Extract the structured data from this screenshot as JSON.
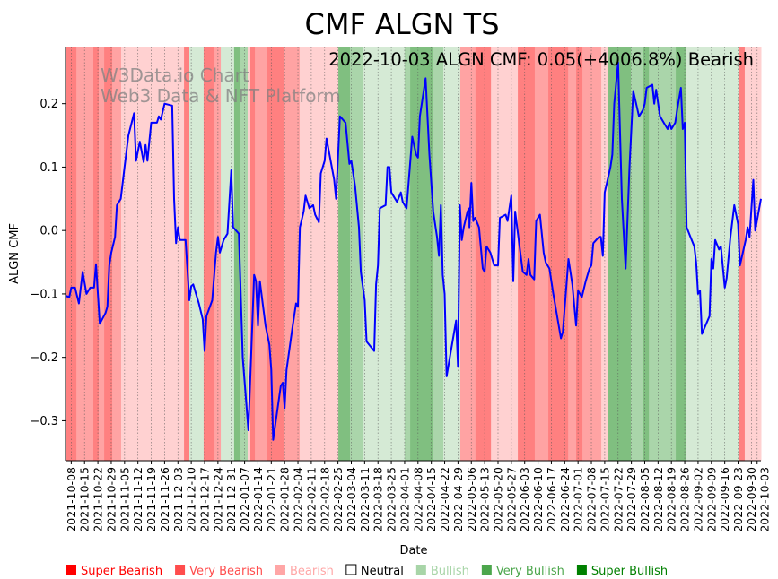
{
  "chart_data": {
    "type": "line",
    "title": "CMF ALGN TS",
    "subtitle": "2022-10-03 ALGN CMF: 0.05(+4006.8%) Bearish",
    "watermark": [
      "W3Data.io Chart",
      "Web3 Data & NFT Platform"
    ],
    "xlabel": "Date",
    "ylabel": "ALGN CMF",
    "x_origin_date": "2021-10-05",
    "x_unit": "days since origin",
    "xlim": [
      0,
      365
    ],
    "ylim": [
      -0.363,
      0.29
    ],
    "yticks": [
      0.2,
      0.1,
      0.0,
      -0.1,
      -0.2,
      -0.3
    ],
    "ytick_labels": [
      "0.2",
      "0.1",
      "0.0",
      "−0.1",
      "−0.2",
      "−0.3"
    ],
    "xtick_days": [
      3,
      10,
      17,
      24,
      31,
      38,
      45,
      52,
      59,
      66,
      73,
      80,
      87,
      94,
      101,
      108,
      115,
      122,
      129,
      136,
      143,
      150,
      157,
      164,
      171,
      178,
      185,
      192,
      199,
      206,
      213,
      220,
      227,
      234,
      241,
      248,
      255,
      262,
      269,
      276,
      283,
      290,
      297,
      304,
      311,
      318,
      325,
      332,
      339,
      346,
      353,
      360,
      363
    ],
    "xtick_labels": [
      "2021-10-08",
      "2021-10-15",
      "2021-10-22",
      "2021-10-29",
      "2021-11-05",
      "2021-11-12",
      "2021-11-19",
      "2021-11-26",
      "2021-12-03",
      "2021-12-10",
      "2021-12-17",
      "2021-12-24",
      "2021-12-31",
      "2022-01-07",
      "2022-01-14",
      "2022-01-21",
      "2022-01-28",
      "2022-02-04",
      "2022-02-11",
      "2022-02-18",
      "2022-02-25",
      "2022-03-04",
      "2022-03-11",
      "2022-03-18",
      "2022-03-25",
      "2022-04-01",
      "2022-04-08",
      "2022-04-15",
      "2022-04-22",
      "2022-04-29",
      "2022-05-06",
      "2022-05-13",
      "2022-05-20",
      "2022-05-27",
      "2022-06-03",
      "2022-06-10",
      "2022-06-17",
      "2022-06-24",
      "2022-07-01",
      "2022-07-08",
      "2022-07-15",
      "2022-07-22",
      "2022-07-29",
      "2022-08-05",
      "2022-08-12",
      "2022-08-19",
      "2022-08-26",
      "2022-09-02",
      "2022-09-09",
      "2022-09-16",
      "2022-09-23",
      "2022-09-30",
      "2022-10-03"
    ],
    "grid": "x-dotted",
    "series": [
      {
        "name": "ALGN CMF",
        "color": "#0000ff",
        "points": [
          [
            0,
            -0.103
          ],
          [
            2,
            -0.105
          ],
          [
            3,
            -0.09
          ],
          [
            5,
            -0.09
          ],
          [
            7,
            -0.115
          ],
          [
            9,
            -0.065
          ],
          [
            11,
            -0.1
          ],
          [
            13,
            -0.09
          ],
          [
            15,
            -0.09
          ],
          [
            16,
            -0.053
          ],
          [
            18,
            -0.147
          ],
          [
            21,
            -0.13
          ],
          [
            22,
            -0.12
          ],
          [
            23,
            -0.055
          ],
          [
            24,
            -0.035
          ],
          [
            26,
            -0.01
          ],
          [
            27,
            0.04
          ],
          [
            29,
            0.05
          ],
          [
            31,
            0.1
          ],
          [
            33,
            0.15
          ],
          [
            36,
            0.185
          ],
          [
            37,
            0.11
          ],
          [
            39,
            0.14
          ],
          [
            41,
            0.108
          ],
          [
            42,
            0.135
          ],
          [
            43,
            0.11
          ],
          [
            45,
            0.17
          ],
          [
            48,
            0.17
          ],
          [
            49,
            0.18
          ],
          [
            50,
            0.175
          ],
          [
            52,
            0.2
          ],
          [
            56,
            0.197
          ],
          [
            57,
            0.05
          ],
          [
            58,
            -0.02
          ],
          [
            59,
            0.005
          ],
          [
            60,
            -0.015
          ],
          [
            63,
            -0.015
          ],
          [
            65,
            -0.11
          ],
          [
            66,
            -0.088
          ],
          [
            67,
            -0.085
          ],
          [
            70,
            -0.115
          ],
          [
            72,
            -0.14
          ],
          [
            73,
            -0.19
          ],
          [
            74,
            -0.135
          ],
          [
            77,
            -0.11
          ],
          [
            79,
            -0.035
          ],
          [
            80,
            -0.01
          ],
          [
            81,
            -0.035
          ],
          [
            83,
            -0.015
          ],
          [
            85,
            -0.005
          ],
          [
            87,
            0.095
          ],
          [
            88,
            0.005
          ],
          [
            91,
            -0.005
          ],
          [
            93,
            -0.2
          ],
          [
            96,
            -0.315
          ],
          [
            99,
            -0.07
          ],
          [
            100,
            -0.08
          ],
          [
            101,
            -0.15
          ],
          [
            102,
            -0.08
          ],
          [
            105,
            -0.15
          ],
          [
            107,
            -0.18
          ],
          [
            108,
            -0.22
          ],
          [
            109,
            -0.33
          ],
          [
            113,
            -0.245
          ],
          [
            114,
            -0.24
          ],
          [
            115,
            -0.28
          ],
          [
            116,
            -0.22
          ],
          [
            119,
            -0.155
          ],
          [
            121,
            -0.115
          ],
          [
            122,
            -0.12
          ],
          [
            123,
            0.005
          ],
          [
            125,
            0.03
          ],
          [
            126,
            0.055
          ],
          [
            128,
            0.035
          ],
          [
            130,
            0.04
          ],
          [
            131,
            0.025
          ],
          [
            133,
            0.013
          ],
          [
            134,
            0.09
          ],
          [
            136,
            0.11
          ],
          [
            137,
            0.145
          ],
          [
            141,
            0.08
          ],
          [
            142,
            0.05
          ],
          [
            144,
            0.18
          ],
          [
            147,
            0.17
          ],
          [
            149,
            0.105
          ],
          [
            150,
            0.11
          ],
          [
            152,
            0.07
          ],
          [
            154,
            0.005
          ],
          [
            155,
            -0.065
          ],
          [
            157,
            -0.11
          ],
          [
            158,
            -0.175
          ],
          [
            162,
            -0.19
          ],
          [
            163,
            -0.085
          ],
          [
            164,
            -0.055
          ],
          [
            165,
            0.035
          ],
          [
            168,
            0.04
          ],
          [
            169,
            0.1
          ],
          [
            170,
            0.1
          ],
          [
            171,
            0.06
          ],
          [
            174,
            0.045
          ],
          [
            176,
            0.06
          ],
          [
            177,
            0.045
          ],
          [
            179,
            0.035
          ],
          [
            182,
            0.148
          ],
          [
            184,
            0.12
          ],
          [
            185,
            0.115
          ],
          [
            186,
            0.18
          ],
          [
            189,
            0.24
          ],
          [
            191,
            0.12
          ],
          [
            193,
            0.03
          ],
          [
            195,
            -0.01
          ],
          [
            196,
            -0.04
          ],
          [
            197,
            0.04
          ],
          [
            198,
            -0.07
          ],
          [
            199,
            -0.1
          ],
          [
            200,
            -0.23
          ],
          [
            205,
            -0.142
          ],
          [
            206,
            -0.215
          ],
          [
            207,
            0.04
          ],
          [
            208,
            -0.015
          ],
          [
            209,
            0.005
          ],
          [
            211,
            0.03
          ],
          [
            212,
            0.035
          ],
          [
            212,
            0.005
          ],
          [
            213,
            0.075
          ],
          [
            214,
            0.015
          ],
          [
            215,
            0.02
          ],
          [
            217,
            0.005
          ],
          [
            219,
            -0.06
          ],
          [
            220,
            -0.065
          ],
          [
            221,
            -0.025
          ],
          [
            223,
            -0.035
          ],
          [
            225,
            -0.055
          ],
          [
            227,
            -0.055
          ],
          [
            228,
            0.02
          ],
          [
            231,
            0.025
          ],
          [
            232,
            0.015
          ],
          [
            234,
            0.055
          ],
          [
            235,
            -0.08
          ],
          [
            236,
            0.03
          ],
          [
            240,
            -0.065
          ],
          [
            242,
            -0.07
          ],
          [
            243,
            -0.045
          ],
          [
            244,
            -0.07
          ],
          [
            246,
            -0.077
          ],
          [
            247,
            0.015
          ],
          [
            249,
            0.025
          ],
          [
            251,
            -0.035
          ],
          [
            252,
            -0.05
          ],
          [
            254,
            -0.06
          ],
          [
            256,
            -0.1
          ],
          [
            260,
            -0.17
          ],
          [
            261,
            -0.16
          ],
          [
            264,
            -0.045
          ],
          [
            266,
            -0.085
          ],
          [
            268,
            -0.15
          ],
          [
            269,
            -0.095
          ],
          [
            271,
            -0.105
          ],
          [
            273,
            -0.08
          ],
          [
            275,
            -0.06
          ],
          [
            276,
            -0.055
          ],
          [
            277,
            -0.02
          ],
          [
            280,
            -0.01
          ],
          [
            281,
            -0.01
          ],
          [
            282,
            -0.04
          ],
          [
            283,
            0.06
          ],
          [
            286,
            0.1
          ],
          [
            287,
            0.12
          ],
          [
            288,
            0.2
          ],
          [
            290,
            0.265
          ],
          [
            292,
            0.05
          ],
          [
            294,
            -0.06
          ],
          [
            296,
            0.1
          ],
          [
            298,
            0.22
          ],
          [
            301,
            0.18
          ],
          [
            303,
            0.19
          ],
          [
            304,
            0.2
          ],
          [
            305,
            0.225
          ],
          [
            308,
            0.23
          ],
          [
            309,
            0.2
          ],
          [
            310,
            0.222
          ],
          [
            312,
            0.18
          ],
          [
            314,
            0.17
          ],
          [
            316,
            0.16
          ],
          [
            317,
            0.17
          ],
          [
            318,
            0.16
          ],
          [
            320,
            0.17
          ],
          [
            321,
            0.19
          ],
          [
            323,
            0.225
          ],
          [
            324,
            0.16
          ],
          [
            325,
            0.17
          ],
          [
            326,
            0.005
          ],
          [
            328,
            -0.01
          ],
          [
            330,
            -0.025
          ],
          [
            331,
            -0.05
          ],
          [
            332,
            -0.1
          ],
          [
            333,
            -0.095
          ],
          [
            334,
            -0.163
          ],
          [
            338,
            -0.135
          ],
          [
            339,
            -0.045
          ],
          [
            340,
            -0.06
          ],
          [
            341,
            -0.015
          ],
          [
            343,
            -0.03
          ],
          [
            344,
            -0.025
          ],
          [
            346,
            -0.09
          ],
          [
            347,
            -0.075
          ],
          [
            349,
            -0.01
          ],
          [
            351,
            0.04
          ],
          [
            353,
            0.01
          ],
          [
            354,
            -0.055
          ],
          [
            357,
            -0.015
          ],
          [
            358,
            0.005
          ],
          [
            359,
            -0.01
          ],
          [
            361,
            0.08
          ],
          [
            362,
            0.0
          ],
          [
            365,
            0.05
          ]
        ]
      }
    ],
    "bands": [
      [
        0,
        5.7,
        "sb"
      ],
      [
        5.7,
        14.6,
        "vb"
      ],
      [
        14.6,
        17.4,
        "sb"
      ],
      [
        17.4,
        20.3,
        "vb"
      ],
      [
        20.3,
        24.5,
        "sb"
      ],
      [
        24.5,
        29.2,
        "vb"
      ],
      [
        29.2,
        62.2,
        "b"
      ],
      [
        62.2,
        65,
        "sb"
      ],
      [
        65,
        72.5,
        "bu"
      ],
      [
        72.5,
        78.2,
        "sb"
      ],
      [
        78.2,
        81.5,
        "vb"
      ],
      [
        81.5,
        88.5,
        "bu"
      ],
      [
        88.5,
        91.4,
        "sbu"
      ],
      [
        91.4,
        95.6,
        "vbu"
      ],
      [
        95.6,
        97,
        "b"
      ],
      [
        97,
        99.4,
        "sb"
      ],
      [
        99.4,
        105.5,
        "vb"
      ],
      [
        105.5,
        114.5,
        "sb"
      ],
      [
        114.5,
        122.9,
        "vb"
      ],
      [
        122.9,
        143.2,
        "b"
      ],
      [
        143.2,
        149.3,
        "sbu"
      ],
      [
        149.3,
        156.4,
        "vbu"
      ],
      [
        156.4,
        178,
        "bu"
      ],
      [
        178,
        180.9,
        "vbu"
      ],
      [
        180.9,
        192.6,
        "sbu"
      ],
      [
        192.6,
        198.3,
        "vbu"
      ],
      [
        198.3,
        207.2,
        "bu"
      ],
      [
        207.2,
        215.2,
        "vb"
      ],
      [
        215.2,
        223.3,
        "sb"
      ],
      [
        223.3,
        237.4,
        "b"
      ],
      [
        237.4,
        246.3,
        "sb"
      ],
      [
        246.3,
        253.4,
        "vb"
      ],
      [
        253.4,
        263.8,
        "sb"
      ],
      [
        263.8,
        268,
        "vb"
      ],
      [
        268,
        271.3,
        "sb"
      ],
      [
        271.3,
        281.2,
        "vb"
      ],
      [
        281.2,
        284.9,
        "b"
      ],
      [
        284.9,
        296.7,
        "sbu"
      ],
      [
        296.7,
        302.9,
        "vbu"
      ],
      [
        302.9,
        306.2,
        "sbu"
      ],
      [
        306.2,
        320.3,
        "vbu"
      ],
      [
        320.3,
        325.9,
        "sbu"
      ],
      [
        325.9,
        353.3,
        "bu"
      ],
      [
        353.3,
        356.5,
        "sb"
      ],
      [
        356.5,
        365,
        "b"
      ]
    ],
    "band_colors": {
      "sb": "#ff8080",
      "vb": "#ffa3a3",
      "b": "#ffd1d1",
      "bu": "#d5ead5",
      "vbu": "#aad5aa",
      "sbu": "#80bf80"
    },
    "legend": {
      "placement": "bottom",
      "items": [
        {
          "label": "Super Bearish",
          "color": "#ff0000",
          "text_color": "#ff0000",
          "filled": true
        },
        {
          "label": "Very Bearish",
          "color": "#ff4d4d",
          "text_color": "#ff4d4d",
          "filled": true
        },
        {
          "label": "Bearish",
          "color": "#ffa6a6",
          "text_color": "#ffa6a6",
          "filled": true
        },
        {
          "label": "Neutral",
          "color": "#000000",
          "text_color": "#000000",
          "filled": false
        },
        {
          "label": "Bullish",
          "color": "#a8d5a8",
          "text_color": "#a8d5a8",
          "filled": true
        },
        {
          "label": "Very Bullish",
          "color": "#4ca64c",
          "text_color": "#4ca64c",
          "filled": true
        },
        {
          "label": "Super Bullish",
          "color": "#008000",
          "text_color": "#008000",
          "filled": true
        }
      ]
    }
  }
}
